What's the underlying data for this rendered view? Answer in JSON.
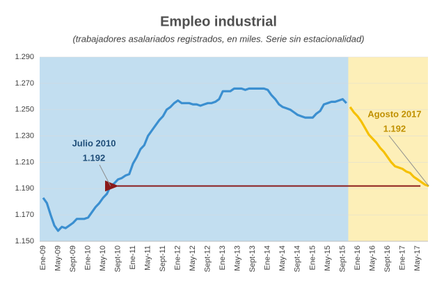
{
  "chart_data": {
    "type": "line",
    "title": "Empleo industrial",
    "subtitle": "(trabajadores  asalariados registrados,  en miles. Serie sin estacionalidad)",
    "categories": [
      "Ene-09",
      null,
      null,
      null,
      "May-09",
      null,
      null,
      null,
      "Sept-09",
      null,
      null,
      null,
      "Ene-10",
      null,
      null,
      null,
      "May-10",
      null,
      null,
      null,
      "Sept-10",
      null,
      null,
      null,
      "Ene-11",
      null,
      null,
      null,
      "May-11",
      null,
      null,
      null,
      "Sept-11",
      null,
      null,
      null,
      "Ene-12",
      null,
      null,
      null,
      "May-12",
      null,
      null,
      null,
      "Sept-12",
      null,
      null,
      null,
      "Ene-13",
      null,
      null,
      null,
      "May-13",
      null,
      null,
      null,
      "Sept-13",
      null,
      null,
      null,
      "Ene-14",
      null,
      null,
      null,
      "May-14",
      null,
      null,
      null,
      "Sept-14",
      null,
      null,
      null,
      "Ene-15",
      null,
      null,
      null,
      "May-15",
      null,
      null,
      null,
      "Sept-15",
      null,
      null,
      null,
      "Ene-16",
      null,
      null,
      null,
      "May-16",
      null,
      null,
      null,
      "Sept-16",
      null,
      null,
      null,
      "Ene-17",
      null,
      null,
      null,
      "May-17",
      null,
      null,
      null
    ],
    "series": [
      {
        "color": "#3b8fd0",
        "background": "#c2def0",
        "values": [
          1183,
          1179,
          1170,
          1162,
          1158,
          1161,
          1160,
          1162,
          1164,
          1167,
          1167,
          1167,
          1168,
          1172,
          1176,
          1179,
          1183,
          1186,
          1192,
          1194,
          1197,
          1198,
          1200,
          1201,
          1209,
          1214,
          1220,
          1223,
          1230,
          1234,
          1238,
          1242,
          1245,
          1250,
          1252,
          1255,
          1257,
          1255,
          1255,
          1255,
          1254,
          1254,
          1253,
          1254,
          1255,
          1255,
          1256,
          1258,
          1264,
          1264,
          1264,
          1266,
          1266,
          1266,
          1265,
          1266,
          1266,
          1266,
          1266,
          1266,
          1265,
          1261,
          1258,
          1254,
          1252,
          1251,
          1250,
          1248,
          1246,
          1245,
          1244,
          1244,
          1244,
          1247,
          1249,
          1254,
          1255,
          1256,
          1256,
          1257,
          1258,
          1255,
          null,
          null,
          null,
          null,
          null,
          null,
          null,
          null,
          null,
          null,
          null,
          null,
          null,
          null,
          null,
          null,
          null,
          null,
          null,
          null,
          null,
          null
        ]
      },
      {
        "color": "#f5c000",
        "background": "#fdefb8",
        "values": [
          null,
          null,
          null,
          null,
          null,
          null,
          null,
          null,
          null,
          null,
          null,
          null,
          null,
          null,
          null,
          null,
          null,
          null,
          null,
          null,
          null,
          null,
          null,
          null,
          null,
          null,
          null,
          null,
          null,
          null,
          null,
          null,
          null,
          null,
          null,
          null,
          null,
          null,
          null,
          null,
          null,
          null,
          null,
          null,
          null,
          null,
          null,
          null,
          null,
          null,
          null,
          null,
          null,
          null,
          null,
          null,
          null,
          null,
          null,
          null,
          null,
          null,
          null,
          null,
          null,
          null,
          null,
          null,
          null,
          null,
          null,
          null,
          null,
          null,
          null,
          null,
          null,
          null,
          null,
          null,
          null,
          null,
          1252,
          1248,
          1245,
          1241,
          1236,
          1231,
          1228,
          1225,
          1221,
          1218,
          1214,
          1210,
          1207,
          1206,
          1205,
          1203,
          1202,
          1199,
          1197,
          1195,
          1193,
          1192
        ]
      }
    ],
    "ylim": [
      1150,
      1290
    ],
    "yticks": [
      {
        "value": 1150,
        "label": "1.150"
      },
      {
        "value": 1170,
        "label": "1.170"
      },
      {
        "value": 1190,
        "label": "1.190"
      },
      {
        "value": 1210,
        "label": "1.210"
      },
      {
        "value": 1230,
        "label": "1.230"
      },
      {
        "value": 1250,
        "label": "1.250"
      },
      {
        "value": 1270,
        "label": "1.270"
      },
      {
        "value": 1290,
        "label": "1.290"
      }
    ],
    "grid": true,
    "annotations": [
      {
        "lines": [
          "Julio 2010",
          "1.192"
        ],
        "color": "#1f4e79"
      },
      {
        "lines": [
          "Agosto 2017",
          "1.192"
        ],
        "color": "#c09000"
      }
    ]
  }
}
